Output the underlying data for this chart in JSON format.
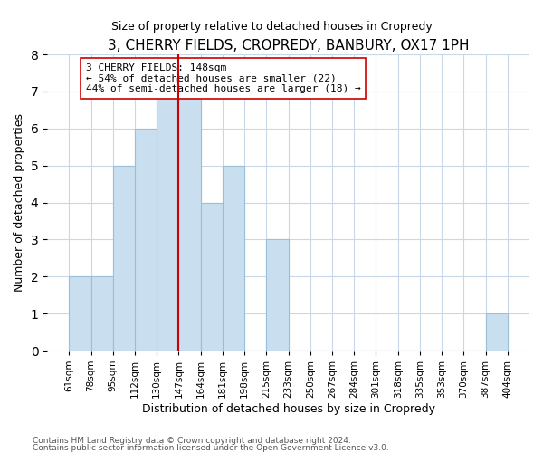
{
  "title": "3, CHERRY FIELDS, CROPREDY, BANBURY, OX17 1PH",
  "subtitle": "Size of property relative to detached houses in Cropredy",
  "xlabel": "Distribution of detached houses by size in Cropredy",
  "ylabel": "Number of detached properties",
  "bin_labels": [
    "61sqm",
    "78sqm",
    "95sqm",
    "112sqm",
    "130sqm",
    "147sqm",
    "164sqm",
    "181sqm",
    "198sqm",
    "215sqm",
    "233sqm",
    "250sqm",
    "267sqm",
    "284sqm",
    "301sqm",
    "318sqm",
    "335sqm",
    "353sqm",
    "370sqm",
    "387sqm",
    "404sqm"
  ],
  "bin_values": [
    2,
    2,
    5,
    6,
    7,
    7,
    4,
    5,
    0,
    3,
    0,
    0,
    0,
    0,
    0,
    0,
    0,
    0,
    0,
    1
  ],
  "bar_color": "#c9dff0",
  "bar_edge_color": "#9bbfd8",
  "red_line_x": 5,
  "marker_color": "#cc0000",
  "annotation_line1": "3 CHERRY FIELDS: 148sqm",
  "annotation_line2": "← 54% of detached houses are smaller (22)",
  "annotation_line3": "44% of semi-detached houses are larger (18) →",
  "annotation_box_color": "white",
  "annotation_box_edge": "#cc0000",
  "ylim": [
    0,
    8
  ],
  "yticks": [
    0,
    1,
    2,
    3,
    4,
    5,
    6,
    7,
    8
  ],
  "footnote1": "Contains HM Land Registry data © Crown copyright and database right 2024.",
  "footnote2": "Contains public sector information licensed under the Open Government Licence v3.0."
}
